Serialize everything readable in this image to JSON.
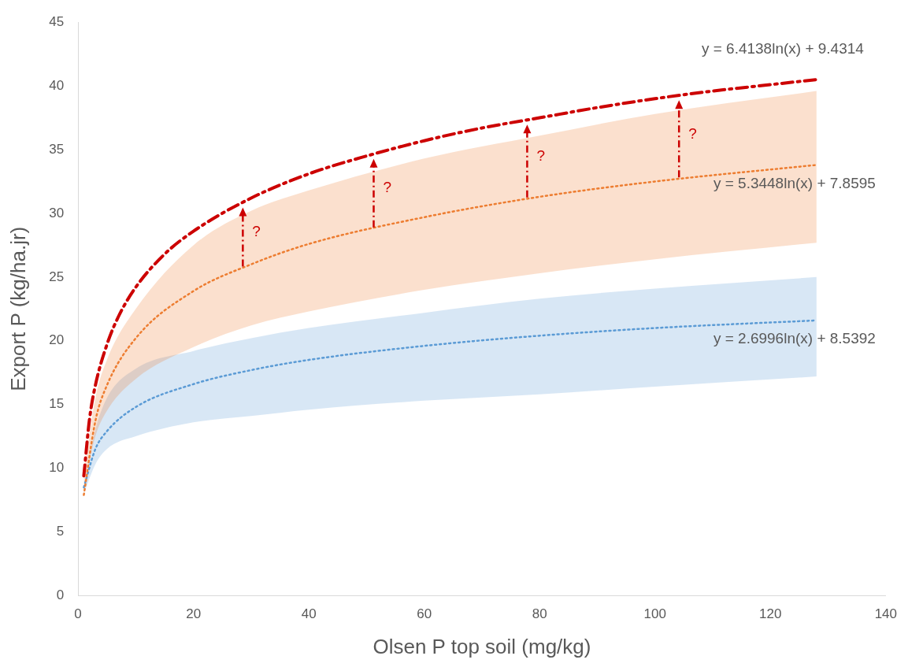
{
  "chart_data": {
    "type": "line",
    "xlabel": "Olsen P top soil (mg/kg)",
    "ylabel": "Export P (kg/ha.jr)",
    "xlim": [
      0,
      140
    ],
    "xticks": [
      0,
      20,
      40,
      60,
      80,
      100,
      120,
      140
    ],
    "ylim": [
      0,
      45
    ],
    "yticks": [
      0,
      5,
      10,
      15,
      20,
      25,
      30,
      35,
      40,
      45
    ],
    "grid": false,
    "legend": false,
    "marker": "none",
    "series": [
      {
        "color": "#ed7d31",
        "line_style": "dotted",
        "x": [
          1,
          3,
          5,
          10,
          20,
          30,
          40,
          60,
          80,
          100,
          128
        ],
        "values": [
          7.9,
          13.7,
          16.5,
          20.2,
          23.9,
          26.0,
          27.6,
          29.7,
          31.3,
          32.5,
          33.8
        ],
        "lower": [
          8.5,
          12.5,
          14.5,
          17.0,
          19.5,
          21.2,
          22.3,
          24.0,
          25.3,
          26.4,
          27.7
        ],
        "upper": [
          9.5,
          15.5,
          18.5,
          22.5,
          27.5,
          30.2,
          31.8,
          34.3,
          36.1,
          37.8,
          39.6
        ]
      },
      {
        "color": "#5b9bd5",
        "line_style": "dotted",
        "x": [
          1,
          3,
          5,
          10,
          20,
          30,
          40,
          60,
          80,
          100,
          128
        ],
        "values": [
          8.5,
          11.5,
          12.9,
          14.8,
          16.6,
          17.7,
          18.5,
          19.6,
          20.4,
          21.0,
          21.6
        ],
        "lower": [
          8.0,
          10.3,
          11.5,
          12.5,
          13.6,
          14.1,
          14.6,
          15.3,
          15.8,
          16.4,
          17.2
        ],
        "upper": [
          8.5,
          13.0,
          15.5,
          17.8,
          19.2,
          20.2,
          21.0,
          22.2,
          23.3,
          24.1,
          25.0
        ]
      },
      {
        "color": "#cc0000",
        "line_style": "dashed",
        "x": [
          1,
          2,
          3,
          5,
          7,
          10,
          15,
          20,
          30,
          40,
          50,
          60,
          70,
          80,
          90,
          100,
          110,
          120,
          128
        ],
        "values": [
          9.4,
          13.9,
          16.5,
          19.7,
          21.9,
          24.2,
          26.8,
          28.6,
          31.2,
          33.1,
          34.5,
          35.7,
          36.7,
          37.5,
          38.3,
          39.0,
          39.6,
          40.1,
          40.5
        ]
      }
    ],
    "annotations": [
      "y = 5.3448ln(x) + 7.8595",
      "y = 2.6996ln(x) + 8.5392",
      "y = 6.4138ln(x) + 9.4314",
      "?",
      "?",
      "?",
      "?"
    ]
  }
}
